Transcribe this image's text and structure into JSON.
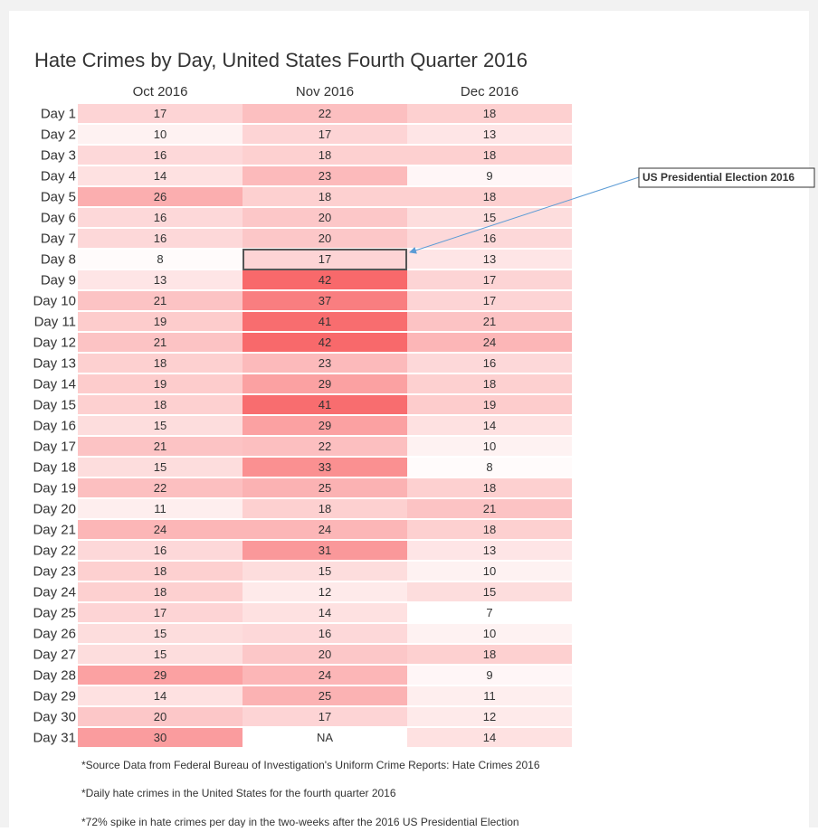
{
  "chart_data": {
    "type": "heatmap",
    "title": "Hate Crimes by Day, United States Fourth Quarter 2016",
    "columns": [
      "Oct 2016",
      "Nov 2016",
      "Dec 2016"
    ],
    "rows": [
      "Day 1",
      "Day 2",
      "Day 3",
      "Day 4",
      "Day 5",
      "Day 6",
      "Day 7",
      "Day 8",
      "Day 9",
      "Day 10",
      "Day 11",
      "Day 12",
      "Day 13",
      "Day 14",
      "Day 15",
      "Day 16",
      "Day 17",
      "Day 18",
      "Day 19",
      "Day 20",
      "Day 21",
      "Day 22",
      "Day 23",
      "Day 24",
      "Day 25",
      "Day 26",
      "Day 27",
      "Day 28",
      "Day 29",
      "Day 30",
      "Day 31"
    ],
    "series": [
      {
        "name": "Oct 2016",
        "values": [
          17,
          10,
          16,
          14,
          26,
          16,
          16,
          8,
          13,
          21,
          19,
          21,
          18,
          19,
          18,
          15,
          21,
          15,
          22,
          11,
          24,
          16,
          18,
          18,
          17,
          15,
          15,
          29,
          14,
          20,
          30
        ]
      },
      {
        "name": "Nov 2016",
        "values": [
          22,
          17,
          18,
          23,
          18,
          20,
          20,
          17,
          42,
          37,
          41,
          42,
          23,
          29,
          41,
          29,
          22,
          33,
          25,
          18,
          24,
          31,
          15,
          12,
          14,
          16,
          20,
          24,
          25,
          17,
          null
        ]
      },
      {
        "name": "Dec 2016",
        "values": [
          18,
          13,
          18,
          9,
          18,
          15,
          16,
          13,
          17,
          17,
          21,
          24,
          16,
          18,
          19,
          14,
          10,
          8,
          18,
          21,
          18,
          13,
          10,
          15,
          7,
          10,
          18,
          9,
          11,
          12,
          14
        ]
      }
    ],
    "missing_label": "NA",
    "color_low": "#ffffff",
    "color_high": "#f8696b",
    "annotation": "US Presidential Election 2016",
    "notes": [
      "*Source Data from Federal Bureau of Investigation's Uniform Crime Reports: Hate Crimes 2016",
      "*Daily hate crimes in the United States for the fourth quarter 2016",
      "*72% spike in hate crimes per day in the two-weeks after the 2016 US Presidential Election"
    ]
  }
}
